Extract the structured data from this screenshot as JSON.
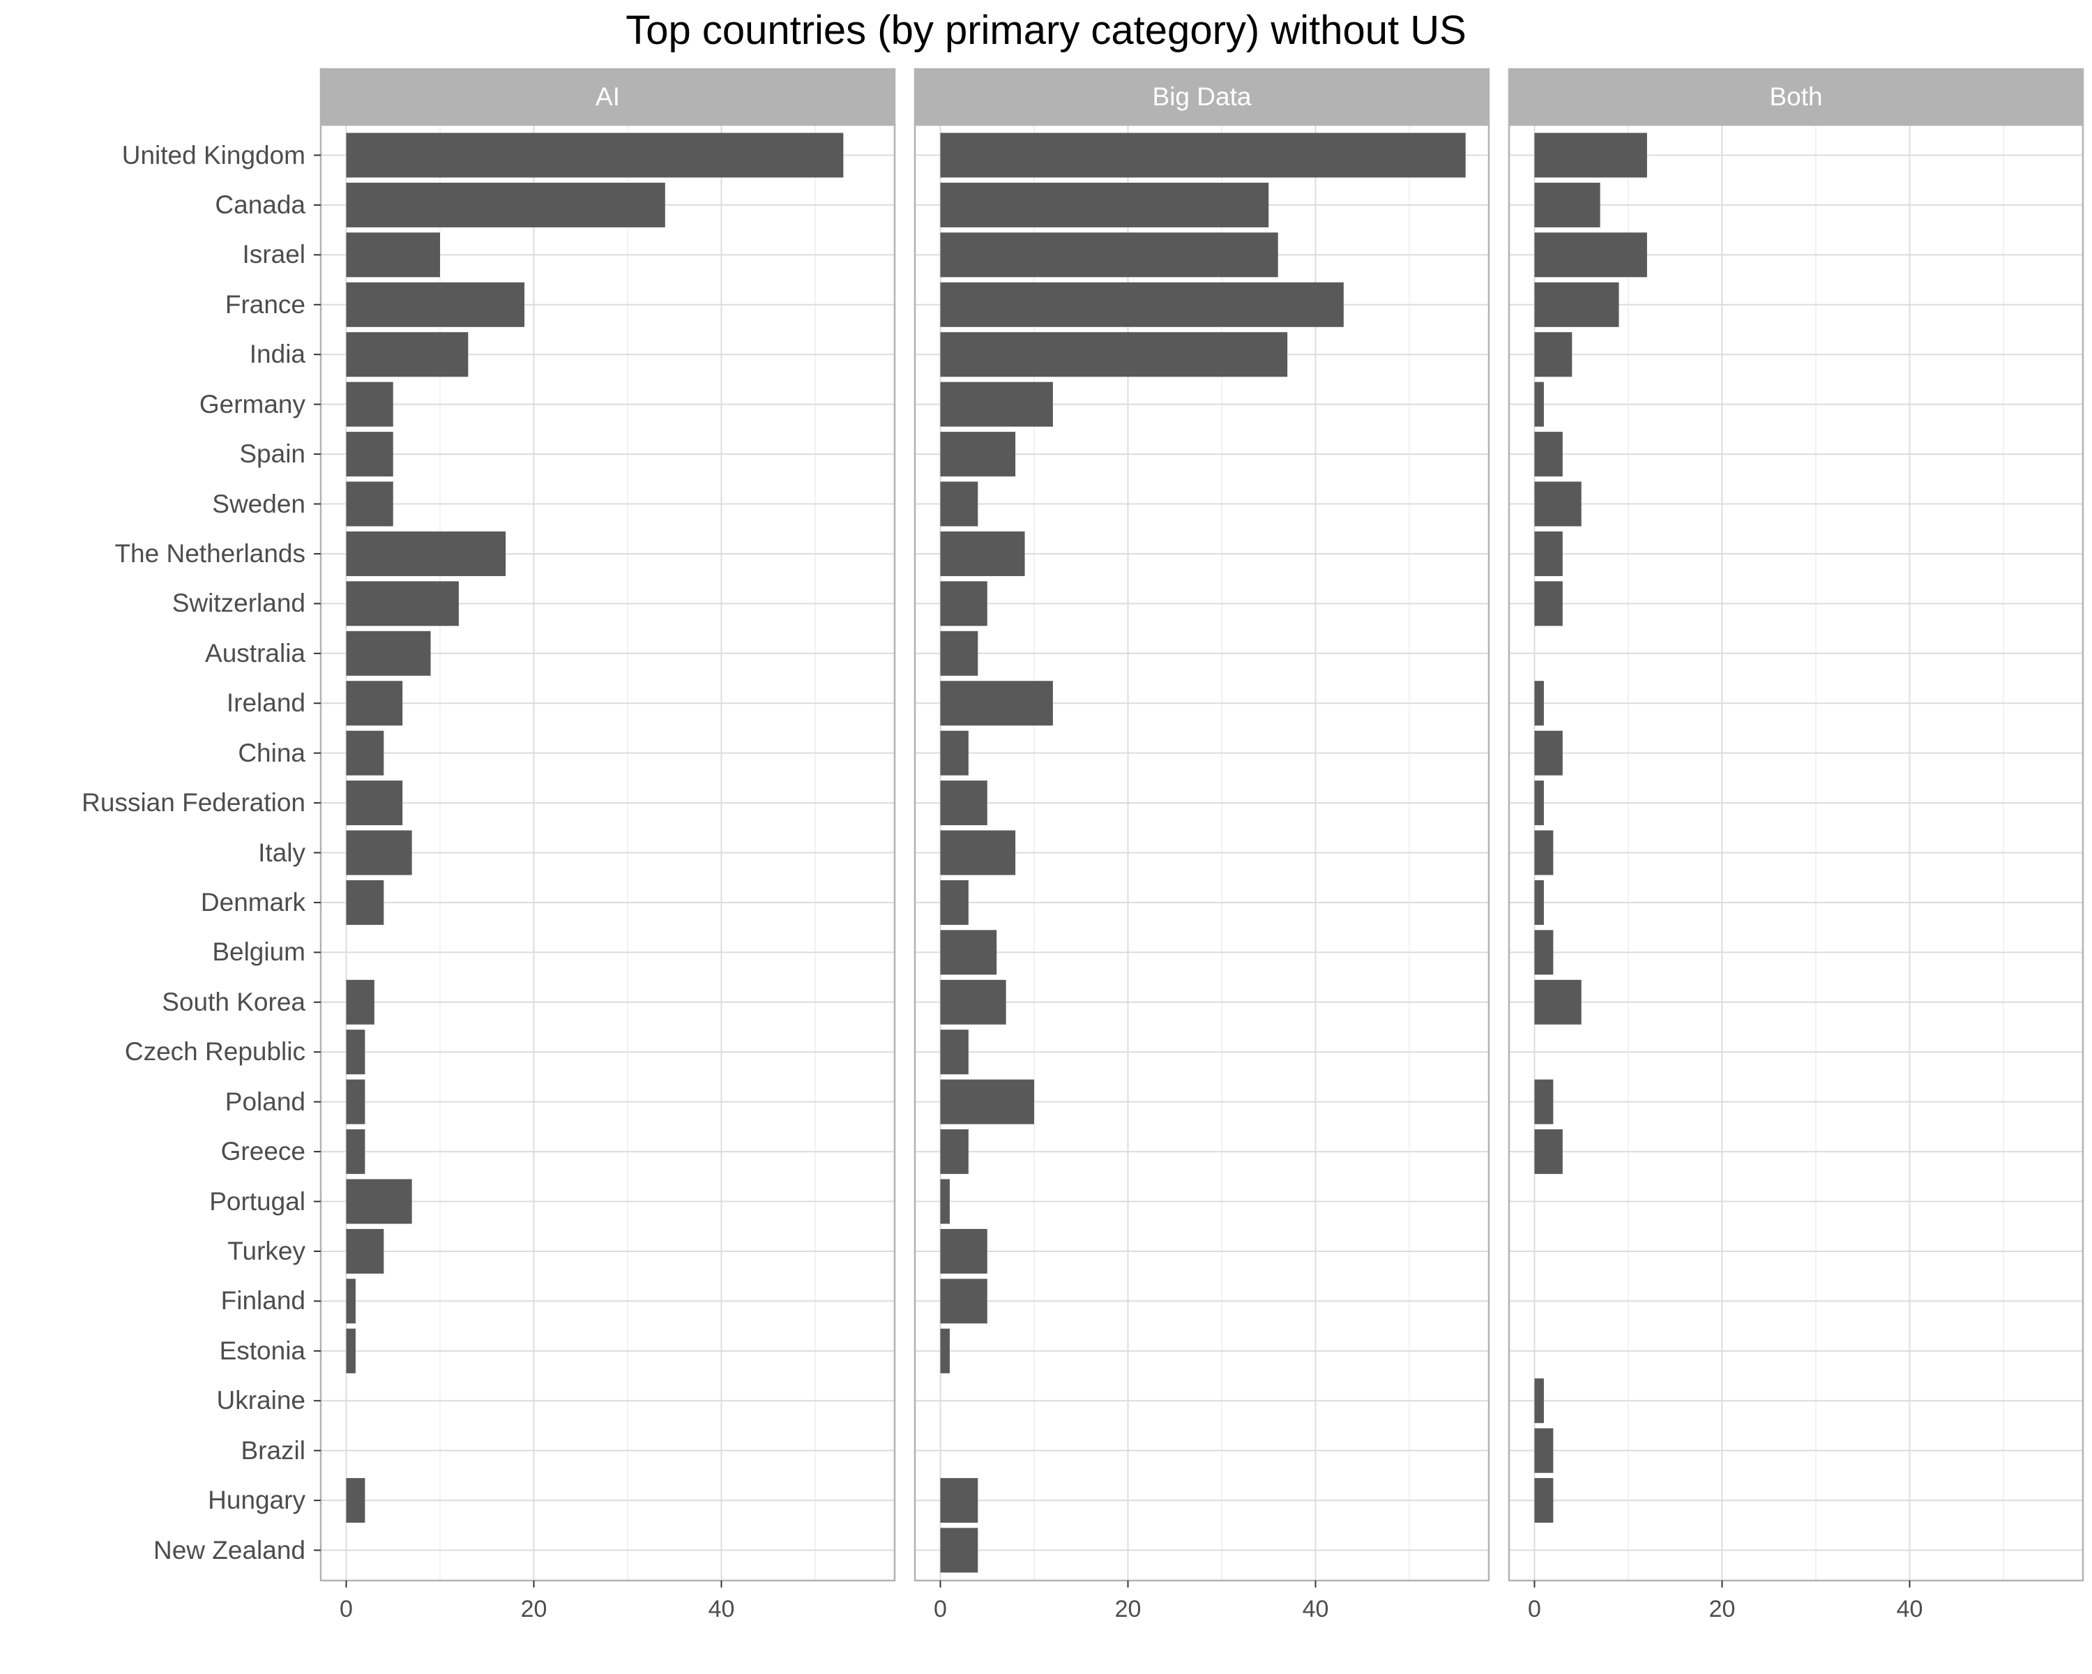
{
  "chart_data": {
    "type": "bar",
    "orientation": "horizontal",
    "title": "Top countries (by primary category) without US",
    "xlabel": "",
    "ylabel": "",
    "xlim": [
      0,
      57
    ],
    "x_ticks": [
      0,
      20,
      40
    ],
    "grid": true,
    "categories": [
      "United Kingdom",
      "Canada",
      "Israel",
      "France",
      "India",
      "Germany",
      "Spain",
      "Sweden",
      "The Netherlands",
      "Switzerland",
      "Australia",
      "Ireland",
      "China",
      "Russian Federation",
      "Italy",
      "Denmark",
      "Belgium",
      "South Korea",
      "Czech Republic",
      "Poland",
      "Greece",
      "Portugal",
      "Turkey",
      "Finland",
      "Estonia",
      "Ukraine",
      "Brazil",
      "Hungary",
      "New Zealand"
    ],
    "facets": [
      {
        "name": "AI",
        "values": [
          53,
          34,
          10,
          19,
          13,
          5,
          5,
          5,
          17,
          12,
          9,
          6,
          4,
          6,
          7,
          4,
          0,
          3,
          2,
          2,
          2,
          7,
          4,
          1,
          1,
          0,
          0,
          2,
          0
        ]
      },
      {
        "name": "Big Data",
        "values": [
          56,
          35,
          36,
          43,
          37,
          12,
          8,
          4,
          9,
          5,
          4,
          12,
          3,
          5,
          8,
          3,
          6,
          7,
          3,
          10,
          3,
          1,
          5,
          5,
          1,
          0,
          0,
          4,
          4
        ]
      },
      {
        "name": "Both",
        "values": [
          12,
          7,
          12,
          9,
          4,
          1,
          3,
          5,
          3,
          3,
          0,
          1,
          3,
          1,
          2,
          1,
          2,
          5,
          0,
          2,
          3,
          0,
          0,
          0,
          0,
          1,
          2,
          2,
          0
        ]
      }
    ],
    "colors": {
      "bar": "#595959",
      "strip": "#b3b3b3",
      "strip_text": "#ffffff",
      "grid_major": "#dcdcdc",
      "grid_minor": "#eeeeee",
      "panel_border": "#b3b3b3"
    }
  }
}
